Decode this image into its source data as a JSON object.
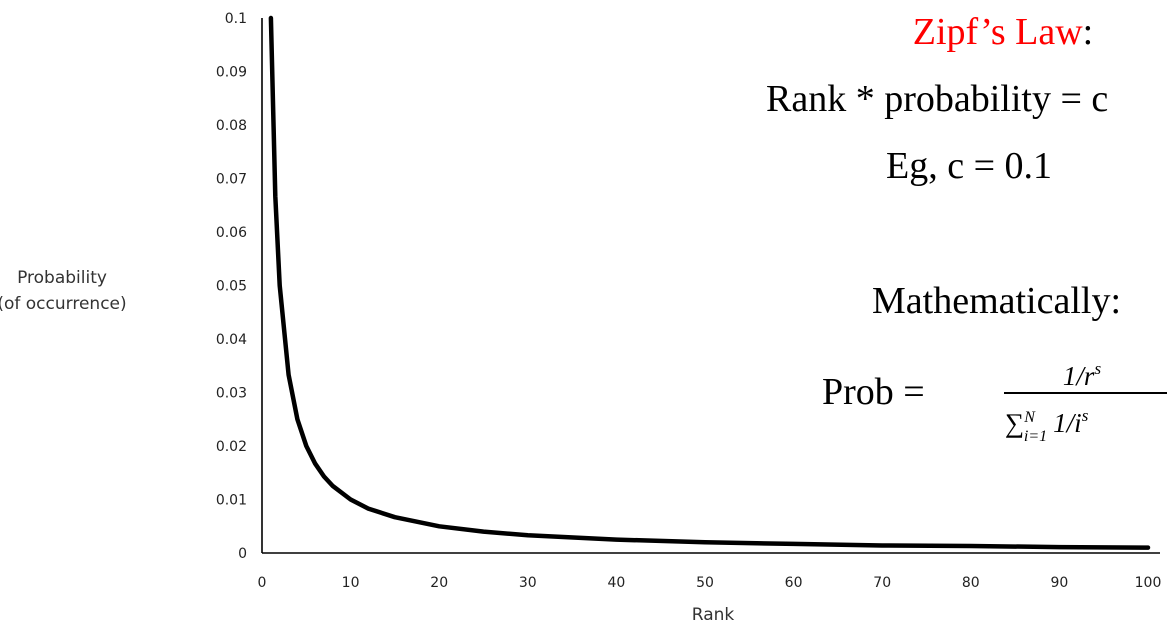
{
  "chart_data": {
    "type": "line",
    "title": "",
    "xlabel": "Rank",
    "ylabel": [
      "Probability",
      "(of occurrence)"
    ],
    "xlim": [
      0,
      100
    ],
    "ylim": [
      0,
      0.1
    ],
    "x_ticks": [
      "0",
      "10",
      "20",
      "30",
      "40",
      "50",
      "60",
      "70",
      "80",
      "90",
      "100"
    ],
    "y_ticks": [
      "0",
      "0.01",
      "0.02",
      "0.03",
      "0.04",
      "0.05",
      "0.06",
      "0.07",
      "0.08",
      "0.09",
      "0.1"
    ],
    "grid": false,
    "series": [
      {
        "x": [
          1,
          1.5,
          2,
          3,
          4,
          5,
          6,
          7,
          8,
          10,
          12,
          15,
          20,
          25,
          30,
          40,
          50,
          60,
          70,
          80,
          90,
          100
        ],
        "y": [
          0.1,
          0.0667,
          0.05,
          0.0333,
          0.025,
          0.02,
          0.0167,
          0.0143,
          0.0125,
          0.01,
          0.0083,
          0.0067,
          0.005,
          0.004,
          0.0033,
          0.0025,
          0.002,
          0.0017,
          0.0014,
          0.0013,
          0.0011,
          0.001
        ],
        "color": "#000000"
      }
    ]
  },
  "annotation": {
    "law_title": "Zipf’s Law",
    "law_title_colon": ":",
    "law_title_color": "#ff0000",
    "line2": "Rank * probability = c",
    "line3": "Eg, c = 0.1",
    "line4": "Mathematically:",
    "formula_lhs": "Prob =",
    "numerator": "1/r",
    "numerator_exp": "s",
    "denominator_sum": "∑",
    "denominator_sup": "N",
    "denominator_sub": "i=1",
    "denominator_term": "1/i",
    "denominator_exp": "s"
  }
}
